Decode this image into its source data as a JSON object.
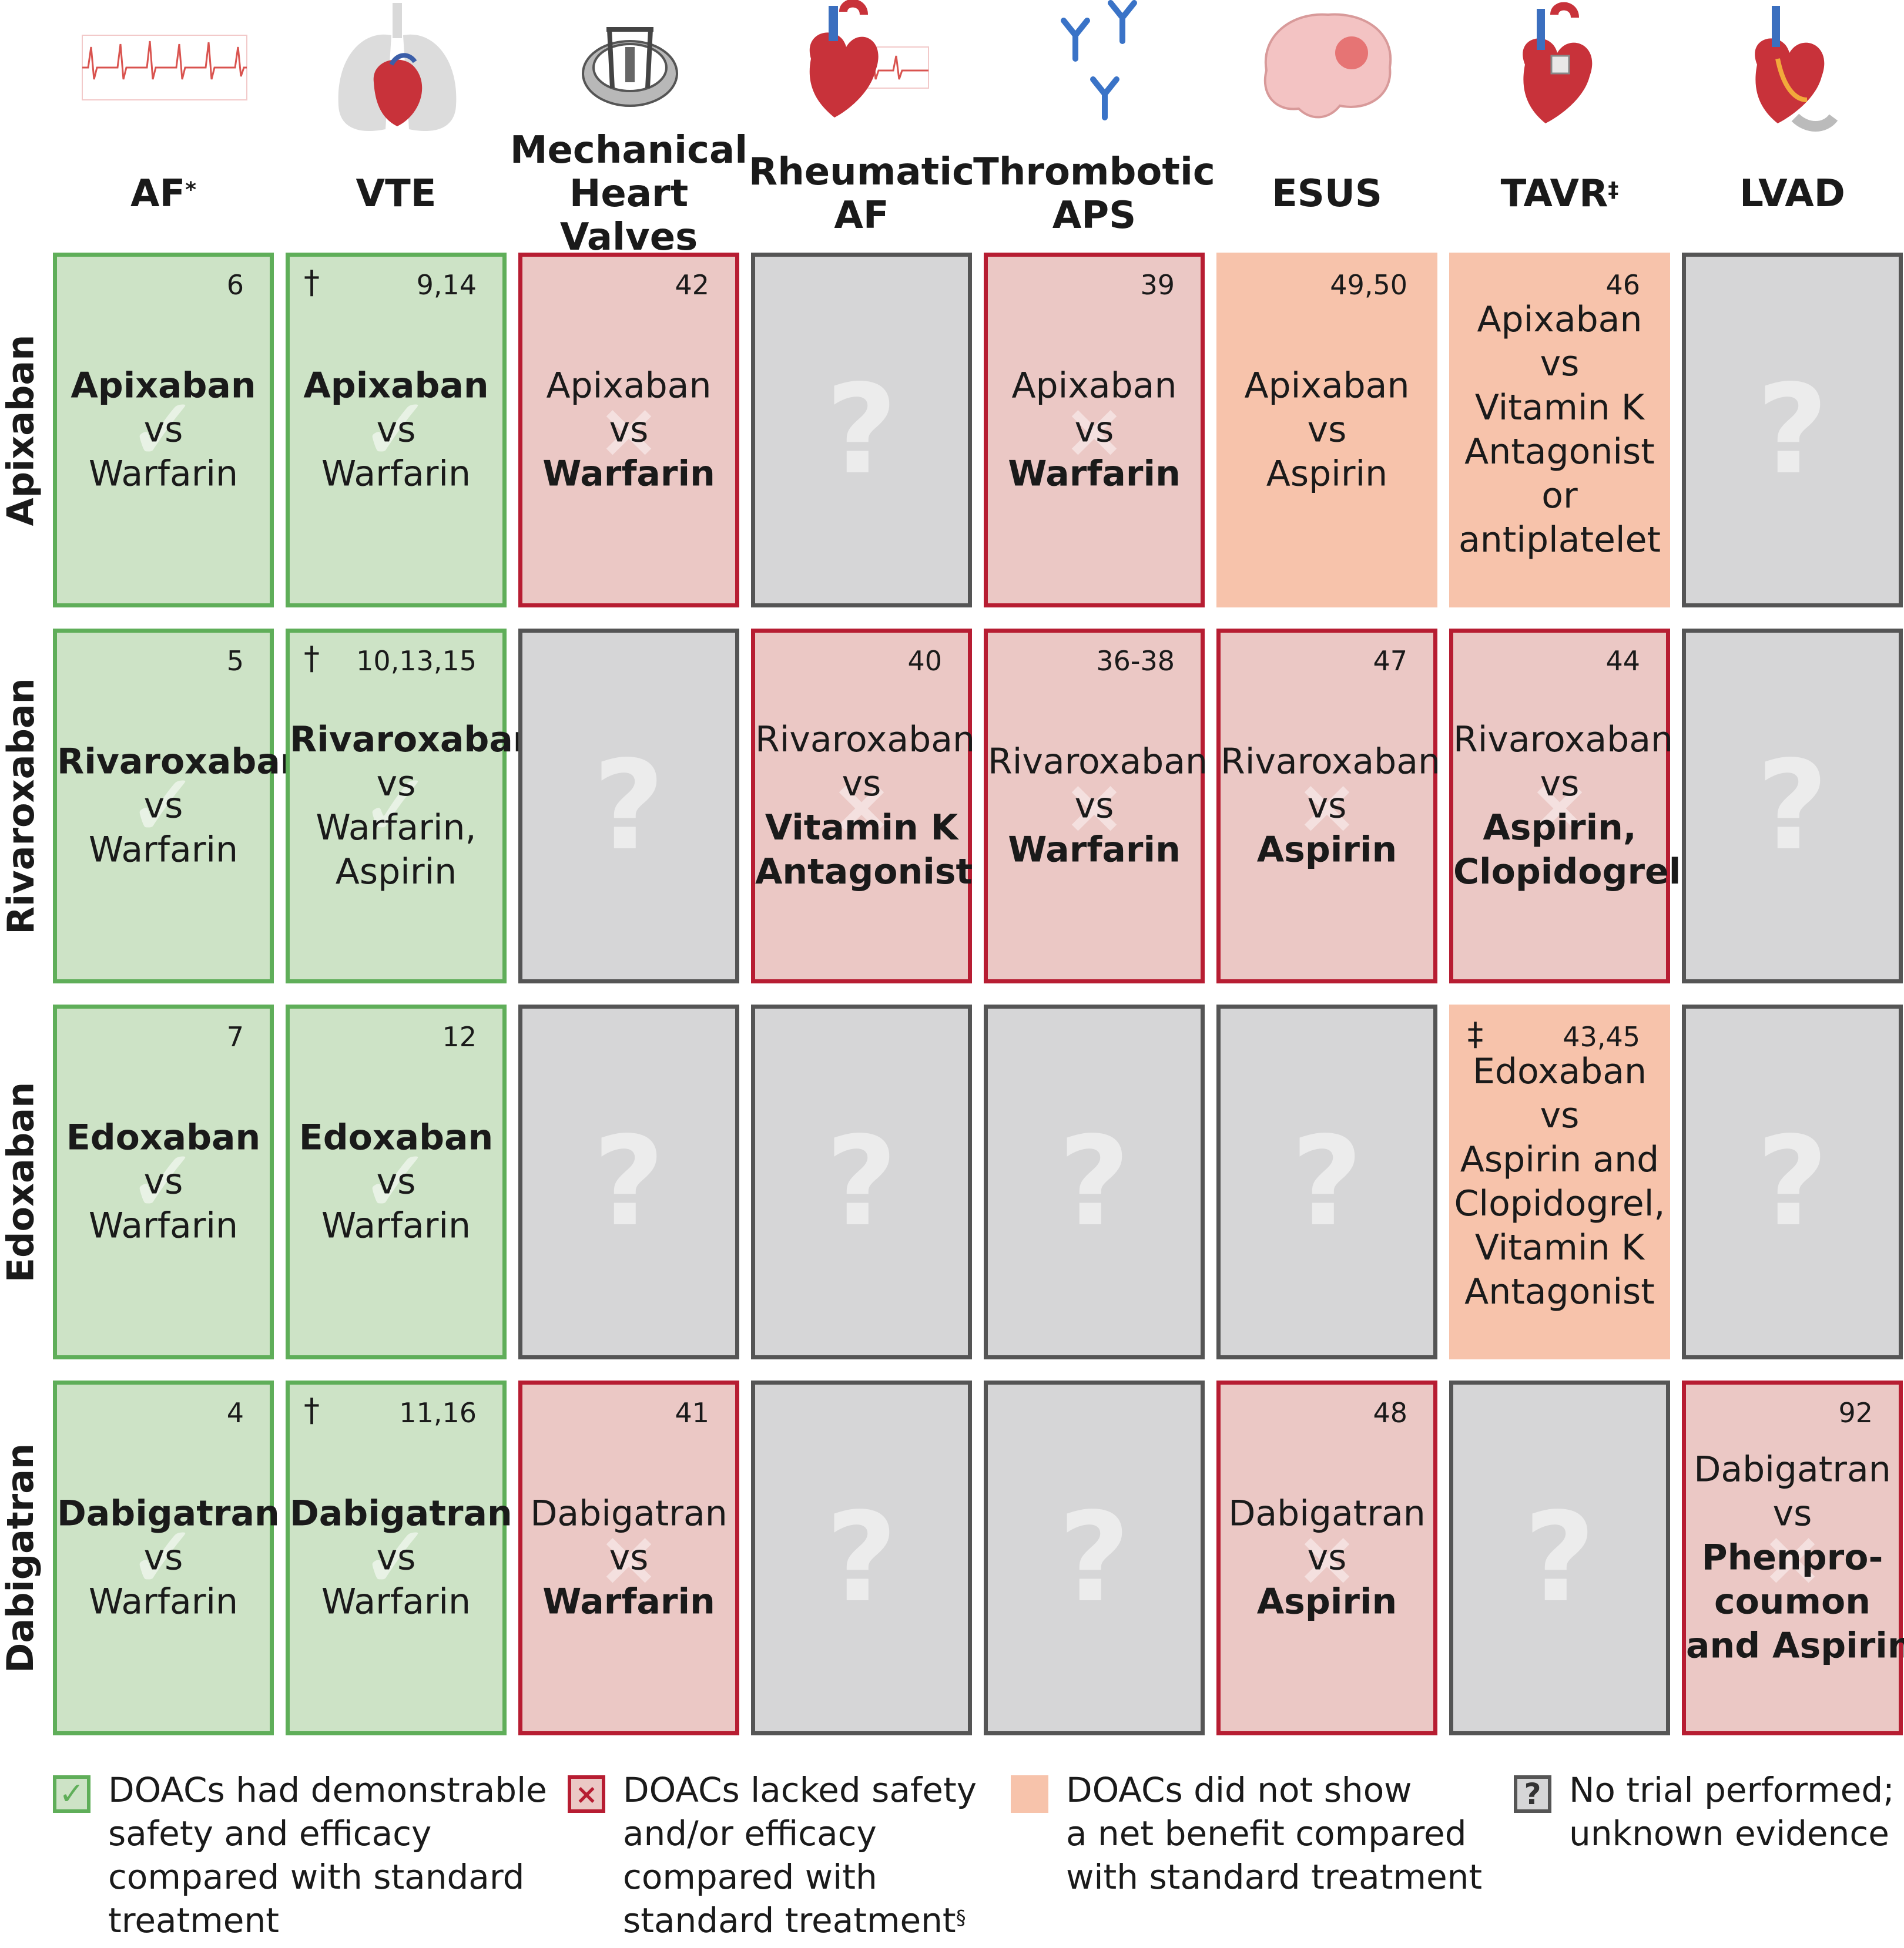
{
  "columns": [
    {
      "label": [
        "AF"
      ],
      "sup": "*"
    },
    {
      "label": [
        "VTE"
      ],
      "sup": ""
    },
    {
      "label": [
        "Mechanical",
        "Heart Valves"
      ],
      "sup": ""
    },
    {
      "label": [
        "Rheumatic",
        "AF"
      ],
      "sup": ""
    },
    {
      "label": [
        "Thrombotic",
        "APS"
      ],
      "sup": ""
    },
    {
      "label": [
        "ESUS"
      ],
      "sup": ""
    },
    {
      "label": [
        "TAVR"
      ],
      "sup": "‡"
    },
    {
      "label": [
        "LVAD"
      ],
      "sup": ""
    }
  ],
  "column_icons": [
    "ecg-icon",
    "lungs-heart-icon",
    "mechanical-valve-icon",
    "heart-ecg-icon",
    "antibodies-icon",
    "brain-icon",
    "heart-valve-icon",
    "heart-lvad-icon"
  ],
  "rows": [
    {
      "label": "Apixaban",
      "cells": [
        {
          "status": "green",
          "ref": "6",
          "sym": "",
          "lines": [
            [
              "Apixaban",
              true
            ],
            [
              "vs",
              false
            ],
            [
              "Warfarin",
              false
            ]
          ]
        },
        {
          "status": "green",
          "ref": "9,14",
          "sym": "†",
          "lines": [
            [
              "Apixaban",
              true
            ],
            [
              "vs",
              false
            ],
            [
              "Warfarin",
              false
            ]
          ]
        },
        {
          "status": "red",
          "ref": "42",
          "sym": "",
          "lines": [
            [
              "Apixaban",
              false
            ],
            [
              "vs",
              false
            ],
            [
              "Warfarin",
              true
            ]
          ]
        },
        {
          "status": "grey",
          "ref": "",
          "sym": "",
          "lines": []
        },
        {
          "status": "red",
          "ref": "39",
          "sym": "",
          "lines": [
            [
              "Apixaban",
              false
            ],
            [
              "vs",
              false
            ],
            [
              "Warfarin",
              true
            ]
          ]
        },
        {
          "status": "orange",
          "ref": "49,50",
          "sym": "",
          "lines": [
            [
              "Apixaban",
              false
            ],
            [
              "vs",
              false
            ],
            [
              "Aspirin",
              false
            ]
          ]
        },
        {
          "status": "orange",
          "ref": "46",
          "sym": "",
          "lines": [
            [
              "Apixaban",
              false
            ],
            [
              "vs",
              false
            ],
            [
              "Vitamin K",
              false
            ],
            [
              "Antagonist",
              false
            ],
            [
              "or",
              false
            ],
            [
              "antiplatelet",
              false
            ]
          ]
        },
        {
          "status": "grey",
          "ref": "",
          "sym": "",
          "lines": []
        }
      ]
    },
    {
      "label": "Rivaroxaban",
      "cells": [
        {
          "status": "green",
          "ref": "5",
          "sym": "",
          "lines": [
            [
              "Rivaroxaban",
              true
            ],
            [
              "vs",
              false
            ],
            [
              "Warfarin",
              false
            ]
          ]
        },
        {
          "status": "green",
          "ref": "10,13,15",
          "sym": "†",
          "lines": [
            [
              "Rivaroxaban",
              true
            ],
            [
              "vs",
              false
            ],
            [
              "Warfarin,",
              false
            ],
            [
              "Aspirin",
              false
            ]
          ]
        },
        {
          "status": "grey",
          "ref": "",
          "sym": "",
          "lines": []
        },
        {
          "status": "red",
          "ref": "40",
          "sym": "",
          "lines": [
            [
              "Rivaroxaban",
              false
            ],
            [
              "vs",
              false
            ],
            [
              "Vitamin K",
              true
            ],
            [
              "Antagonist",
              true
            ]
          ]
        },
        {
          "status": "red",
          "ref": "36-38",
          "sym": "",
          "lines": [
            [
              "Rivaroxaban",
              false
            ],
            [
              "vs",
              false
            ],
            [
              "Warfarin",
              true
            ]
          ]
        },
        {
          "status": "red",
          "ref": "47",
          "sym": "",
          "lines": [
            [
              "Rivaroxaban",
              false
            ],
            [
              "vs",
              false
            ],
            [
              "Aspirin",
              true
            ]
          ]
        },
        {
          "status": "red",
          "ref": "44",
          "sym": "",
          "lines": [
            [
              "Rivaroxaban",
              false
            ],
            [
              "vs",
              false
            ],
            [
              "Aspirin,",
              true
            ],
            [
              "Clopidogrel",
              true
            ]
          ]
        },
        {
          "status": "grey",
          "ref": "",
          "sym": "",
          "lines": []
        }
      ]
    },
    {
      "label": "Edoxaban",
      "cells": [
        {
          "status": "green",
          "ref": "7",
          "sym": "",
          "lines": [
            [
              "Edoxaban",
              true
            ],
            [
              "vs",
              false
            ],
            [
              "Warfarin",
              false
            ]
          ]
        },
        {
          "status": "green",
          "ref": "12",
          "sym": "",
          "lines": [
            [
              "Edoxaban",
              true
            ],
            [
              "vs",
              false
            ],
            [
              "Warfarin",
              false
            ]
          ]
        },
        {
          "status": "grey",
          "ref": "",
          "sym": "",
          "lines": []
        },
        {
          "status": "grey",
          "ref": "",
          "sym": "",
          "lines": []
        },
        {
          "status": "grey",
          "ref": "",
          "sym": "",
          "lines": []
        },
        {
          "status": "grey",
          "ref": "",
          "sym": "",
          "lines": []
        },
        {
          "status": "orange",
          "ref": "43,45",
          "sym": "‡",
          "lines": [
            [
              "Edoxaban",
              false
            ],
            [
              "vs",
              false
            ],
            [
              "Aspirin and",
              false
            ],
            [
              "Clopidogrel,",
              false
            ],
            [
              "Vitamin K",
              false
            ],
            [
              "Antagonist",
              false
            ]
          ]
        },
        {
          "status": "grey",
          "ref": "",
          "sym": "",
          "lines": []
        }
      ]
    },
    {
      "label": "Dabigatran",
      "cells": [
        {
          "status": "green",
          "ref": "4",
          "sym": "",
          "lines": [
            [
              "Dabigatran",
              true
            ],
            [
              "vs",
              false
            ],
            [
              "Warfarin",
              false
            ]
          ]
        },
        {
          "status": "green",
          "ref": "11,16",
          "sym": "†",
          "lines": [
            [
              "Dabigatran",
              true
            ],
            [
              "vs",
              false
            ],
            [
              "Warfarin",
              false
            ]
          ]
        },
        {
          "status": "red",
          "ref": "41",
          "sym": "",
          "lines": [
            [
              "Dabigatran",
              false
            ],
            [
              "vs",
              false
            ],
            [
              "Warfarin",
              true
            ]
          ]
        },
        {
          "status": "grey",
          "ref": "",
          "sym": "",
          "lines": []
        },
        {
          "status": "grey",
          "ref": "",
          "sym": "",
          "lines": []
        },
        {
          "status": "red",
          "ref": "48",
          "sym": "",
          "lines": [
            [
              "Dabigatran",
              false
            ],
            [
              "vs",
              false
            ],
            [
              "Aspirin",
              true
            ]
          ]
        },
        {
          "status": "grey",
          "ref": "",
          "sym": "",
          "lines": []
        },
        {
          "status": "red",
          "ref": "92",
          "sym": "",
          "lines": [
            [
              "Dabigatran",
              false
            ],
            [
              "vs",
              false
            ],
            [
              "Phenpro-",
              true
            ],
            [
              "coumon",
              true
            ],
            [
              "and Aspirin",
              true
            ]
          ]
        }
      ]
    }
  ],
  "legend": [
    {
      "status": "green",
      "icon": "check-icon",
      "glyph": "✓",
      "lines": [
        "DOACs had demonstrable",
        "safety and efficacy",
        "compared with standard",
        "treatment"
      ],
      "sup": ""
    },
    {
      "status": "red",
      "icon": "x-icon",
      "glyph": "×",
      "lines": [
        "DOACs lacked safety",
        "and/or efficacy",
        "compared with",
        "standard treatment"
      ],
      "sup": "§"
    },
    {
      "status": "orange",
      "icon": "orange-swatch",
      "glyph": "",
      "lines": [
        "DOACs did not show",
        "a net benefit compared",
        "with standard treatment"
      ],
      "sup": ""
    },
    {
      "status": "grey",
      "icon": "question-icon",
      "glyph": "?",
      "lines": [
        "No trial performed;",
        "unknown evidence"
      ],
      "sup": ""
    }
  ],
  "colors": {
    "green_fill": "#cde3c6",
    "green_border": "#5fae59",
    "red_fill": "#ebc8c5",
    "red_border": "#b71d32",
    "orange_fill": "#f7c3ab",
    "grey_fill": "#d6d6d7",
    "grey_border": "#555555"
  }
}
